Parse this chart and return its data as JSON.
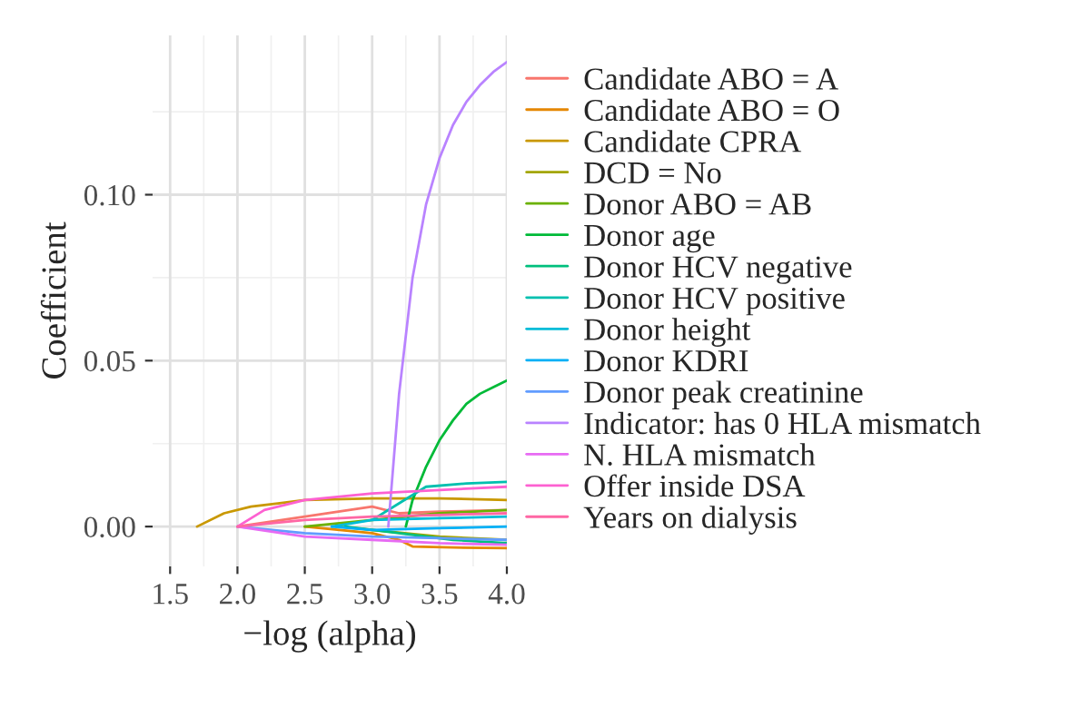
{
  "chart_data": {
    "type": "line",
    "xlabel": "−log (alpha)",
    "ylabel": "Coefficient",
    "xlim": [
      1.37,
      4.0
    ],
    "xticks": [
      {
        "value": 1.5,
        "label": "1.5"
      },
      {
        "value": 2.0,
        "label": "2.0"
      },
      {
        "value": 2.5,
        "label": "2.5"
      },
      {
        "value": 3.0,
        "label": "3.0"
      },
      {
        "value": 3.5,
        "label": "3.5"
      },
      {
        "value": 4.0,
        "label": "4.0"
      }
    ],
    "ylim": [
      -0.012,
      0.148
    ],
    "yticks": [
      {
        "value": 0.0,
        "label": "0.00"
      },
      {
        "value": 0.05,
        "label": "0.05"
      },
      {
        "value": 0.1,
        "label": "0.10"
      }
    ],
    "grid": true,
    "legend": "right",
    "line_style": "solid",
    "marker": "none",
    "series": [
      {
        "name": "Candidate ABO = A",
        "color": "#f8766d",
        "x": [
          2.0,
          2.5,
          3.0,
          3.2,
          3.5,
          4.0
        ],
        "values": [
          0,
          0.003,
          0.006,
          0.004,
          0.0045,
          0.005
        ]
      },
      {
        "name": "Candidate ABO = O",
        "color": "#e58700",
        "x": [
          2.5,
          3.0,
          3.2,
          3.3,
          3.6,
          4.0
        ],
        "values": [
          0,
          -0.002,
          -0.004,
          -0.006,
          -0.0063,
          -0.0065
        ]
      },
      {
        "name": "Candidate CPRA",
        "color": "#c99800",
        "x": [
          1.7,
          1.9,
          2.1,
          2.3,
          2.5,
          3.0,
          3.5,
          4.0
        ],
        "values": [
          0,
          0.004,
          0.006,
          0.007,
          0.008,
          0.0085,
          0.0085,
          0.008
        ]
      },
      {
        "name": "DCD = No",
        "color": "#a3a500",
        "x": [
          2.75,
          3.0,
          3.5,
          4.0
        ],
        "values": [
          0,
          -0.001,
          -0.003,
          -0.004
        ]
      },
      {
        "name": "Donor ABO = AB",
        "color": "#6bb100",
        "x": [
          2.5,
          3.0,
          3.5,
          4.0
        ],
        "values": [
          0,
          0.002,
          0.004,
          0.005
        ]
      },
      {
        "name": "Donor age",
        "color": "#00ba38",
        "x": [
          3.25,
          3.3,
          3.4,
          3.5,
          3.6,
          3.7,
          3.8,
          3.9,
          4.0
        ],
        "values": [
          0,
          0.008,
          0.018,
          0.026,
          0.032,
          0.037,
          0.04,
          0.042,
          0.044
        ]
      },
      {
        "name": "Donor HCV negative",
        "color": "#00bf7d",
        "x": [
          2.8,
          3.2,
          3.6,
          4.0
        ],
        "values": [
          0,
          -0.002,
          -0.004,
          -0.005
        ]
      },
      {
        "name": "Donor HCV positive",
        "color": "#00c0af",
        "x": [
          3.0,
          3.2,
          3.4,
          3.7,
          4.0
        ],
        "values": [
          0.002,
          0.007,
          0.012,
          0.013,
          0.0135
        ]
      },
      {
        "name": "Donor height",
        "color": "#00bcd8",
        "x": [
          2.7,
          3.0,
          3.5,
          4.0
        ],
        "values": [
          0,
          0.002,
          0.0025,
          0.003
        ]
      },
      {
        "name": "Donor KDRI",
        "color": "#00b0f6",
        "x": [
          2.7,
          3.0,
          3.5,
          4.0
        ],
        "values": [
          0,
          -0.001,
          -0.0005,
          0
        ]
      },
      {
        "name": "Donor peak creatinine",
        "color": "#619cff",
        "x": [
          2.0,
          2.5,
          3.0,
          3.5,
          4.0
        ],
        "values": [
          0,
          -0.002,
          -0.003,
          -0.0035,
          -0.004
        ]
      },
      {
        "name": "Indicator: has 0 HLA mismatch",
        "color": "#b983ff",
        "x": [
          3.12,
          3.2,
          3.3,
          3.4,
          3.5,
          3.6,
          3.7,
          3.8,
          3.9,
          4.0
        ],
        "values": [
          0,
          0.04,
          0.075,
          0.097,
          0.111,
          0.121,
          0.128,
          0.133,
          0.137,
          0.14
        ]
      },
      {
        "name": "N. HLA mismatch",
        "color": "#e76bf3",
        "x": [
          2.0,
          2.5,
          3.0,
          3.5,
          4.0
        ],
        "values": [
          0,
          -0.003,
          -0.004,
          -0.005,
          -0.0055
        ]
      },
      {
        "name": "Offer inside DSA",
        "color": "#fd61d1",
        "x": [
          2.0,
          2.2,
          2.5,
          3.0,
          3.5,
          4.0
        ],
        "values": [
          0,
          0.005,
          0.008,
          0.01,
          0.011,
          0.012
        ]
      },
      {
        "name": "Years on dialysis",
        "color": "#ff67a4",
        "x": [
          2.0,
          2.5,
          3.0,
          3.5,
          4.0
        ],
        "values": [
          0,
          0.002,
          0.003,
          0.0035,
          0.004
        ]
      }
    ]
  }
}
